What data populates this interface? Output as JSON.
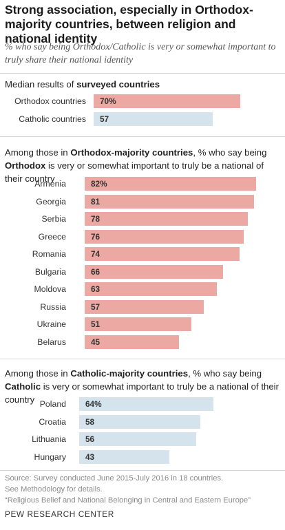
{
  "header": {
    "title": "Strong association, especially in Orthodox-majority countries, between religion and national identity",
    "subtitle": "% who say being Orthodox/Catholic is very or somewhat important to truly share their national identity"
  },
  "sections": {
    "median": {
      "head_pre": "Median results of ",
      "head_bold": "surveyed countries"
    },
    "orthodox": {
      "head_pre": "Among those in ",
      "head_bold1": "Orthodox-majority countries",
      "head_mid": ", % who say being ",
      "head_bold2": "Orthodox",
      "head_post": " is very or somewhat important to truly be a national of their country"
    },
    "catholic": {
      "head_pre": "Among those in ",
      "head_bold1": "Catholic-majority countries",
      "head_mid": ", % who say being ",
      "head_bold2": "Catholic",
      "head_post": " is very or somewhat important to truly be a national of their country"
    }
  },
  "footer": {
    "source": "Source: Survey conducted June 2015-July 2016 in 18 countries.",
    "method": "See Methodology for details.",
    "report": "“Religious Belief and National Belonging in Central and Eastern Europe”",
    "brand": "PEW RESEARCH CENTER"
  },
  "colors": {
    "orthodox": "#eca8a2",
    "catholic": "#d4e3ec"
  },
  "chart_data": [
    {
      "type": "bar",
      "orientation": "horizontal",
      "categories": [
        "Orthodox countries",
        "Catholic countries"
      ],
      "values": [
        70,
        57
      ],
      "value_labels": [
        "70%",
        "57"
      ],
      "xlim": [
        0,
        100
      ]
    },
    {
      "type": "bar",
      "orientation": "horizontal",
      "categories": [
        "Armenia",
        "Georgia",
        "Serbia",
        "Greece",
        "Romania",
        "Bulgaria",
        "Moldova",
        "Russia",
        "Ukraine",
        "Belarus"
      ],
      "values": [
        82,
        81,
        78,
        76,
        74,
        66,
        63,
        57,
        51,
        45
      ],
      "value_labels": [
        "82%",
        "81",
        "78",
        "76",
        "74",
        "66",
        "63",
        "57",
        "51",
        "45"
      ],
      "xlim": [
        0,
        100
      ]
    },
    {
      "type": "bar",
      "orientation": "horizontal",
      "categories": [
        "Poland",
        "Croatia",
        "Lithuania",
        "Hungary"
      ],
      "values": [
        64,
        58,
        56,
        43
      ],
      "value_labels": [
        "64%",
        "58",
        "56",
        "43"
      ],
      "xlim": [
        0,
        100
      ]
    }
  ]
}
